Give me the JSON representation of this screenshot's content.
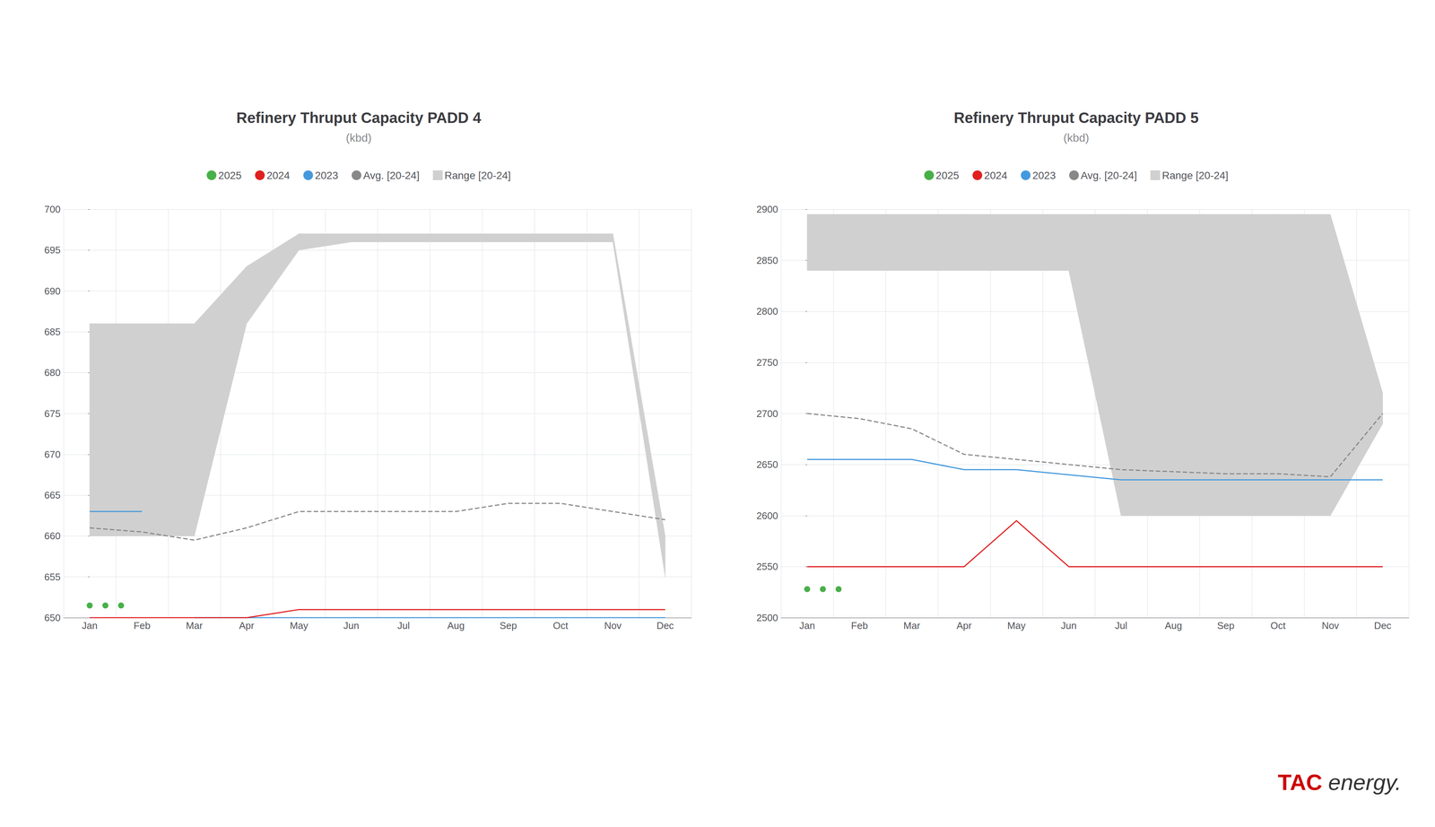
{
  "chart_data": [
    {
      "type": "line",
      "title": "Refinery Thruput Capacity PADD 4",
      "subtitle": "(kbd)",
      "categories": [
        "Jan",
        "Feb",
        "Mar",
        "Apr",
        "May",
        "Jun",
        "Jul",
        "Aug",
        "Sep",
        "Oct",
        "Nov",
        "Dec"
      ],
      "ylim": [
        650,
        700
      ],
      "yticks": [
        650,
        655,
        660,
        665,
        670,
        675,
        680,
        685,
        690,
        695,
        700
      ],
      "grid": true,
      "legend": "top",
      "series": [
        {
          "name": "Range [20-24]",
          "type": "range",
          "color": "#d0d0d0",
          "low": [
            660,
            660,
            660,
            686,
            695,
            696,
            696,
            696,
            696,
            696,
            696,
            655
          ],
          "high": [
            686,
            686,
            686,
            693,
            697,
            697,
            697,
            697,
            697,
            697,
            697,
            660
          ]
        },
        {
          "name": "Avg. [20-24]",
          "type": "line",
          "color": "#888888",
          "line_style": "dashed",
          "values": [
            661,
            660.5,
            659.5,
            661,
            663,
            663,
            663,
            663,
            664,
            664,
            663,
            662
          ]
        },
        {
          "name": "2023",
          "type": "line",
          "color": "#4499dd",
          "values": [
            663,
            663,
            null,
            null,
            null,
            null,
            null,
            null,
            null,
            null,
            null,
            null
          ]
        },
        {
          "name": "2023",
          "type": "line",
          "color": "#4499dd",
          "values": [
            null,
            null,
            650,
            650,
            650,
            650,
            650,
            650,
            650,
            650,
            650,
            650
          ]
        },
        {
          "name": "2024",
          "type": "line",
          "color": "#e02020",
          "values": [
            650,
            650,
            650,
            650,
            651,
            651,
            651,
            651,
            651,
            651,
            651,
            651
          ]
        },
        {
          "name": "2025",
          "type": "scatter",
          "color": "#1a9c1a",
          "marker": "circle",
          "x": [
            0.0,
            0.3,
            0.6
          ],
          "values": [
            651.5,
            651.5,
            651.5
          ]
        }
      ]
    },
    {
      "type": "line",
      "title": "Refinery Thruput Capacity PADD 5",
      "subtitle": "(kbd)",
      "categories": [
        "Jan",
        "Feb",
        "Mar",
        "Apr",
        "May",
        "Jun",
        "Jul",
        "Aug",
        "Sep",
        "Oct",
        "Nov",
        "Dec"
      ],
      "ylim": [
        2500,
        2900
      ],
      "yticks": [
        2500,
        2550,
        2600,
        2650,
        2700,
        2750,
        2800,
        2850,
        2900
      ],
      "grid": true,
      "legend": "top",
      "series": [
        {
          "name": "Range [20-24]",
          "type": "range",
          "color": "#d0d0d0",
          "low": [
            2840,
            2840,
            2840,
            2840,
            2840,
            2840,
            2600,
            2600,
            2600,
            2600,
            2600,
            2690
          ],
          "high": [
            2895,
            2895,
            2895,
            2895,
            2895,
            2895,
            2895,
            2895,
            2895,
            2895,
            2895,
            2720
          ]
        },
        {
          "name": "Avg. [20-24]",
          "type": "line",
          "color": "#888888",
          "line_style": "dashed",
          "values": [
            2700,
            2695,
            2685,
            2660,
            2655,
            2650,
            2645,
            2643,
            2641,
            2641,
            2638,
            2700
          ]
        },
        {
          "name": "2023",
          "type": "line",
          "color": "#4499dd",
          "values": [
            2655,
            2655,
            2655,
            2645,
            2645,
            2640,
            2635,
            2635,
            2635,
            2635,
            2635,
            2635
          ]
        },
        {
          "name": "2024",
          "type": "line",
          "color": "#e02020",
          "values": [
            2550,
            2550,
            2550,
            2550,
            2595,
            2550,
            2550,
            2550,
            2550,
            2550,
            2550,
            2550
          ]
        },
        {
          "name": "2025",
          "type": "scatter",
          "color": "#1a9c1a",
          "marker": "circle",
          "x": [
            0.0,
            0.3,
            0.6
          ],
          "values": [
            2528,
            2528,
            2528
          ]
        }
      ],
      "annotations": [
        {
          "text": "TAC",
          "color": "#cc0000"
        },
        {
          "text": "energy.",
          "color": "#333333"
        }
      ]
    }
  ]
}
